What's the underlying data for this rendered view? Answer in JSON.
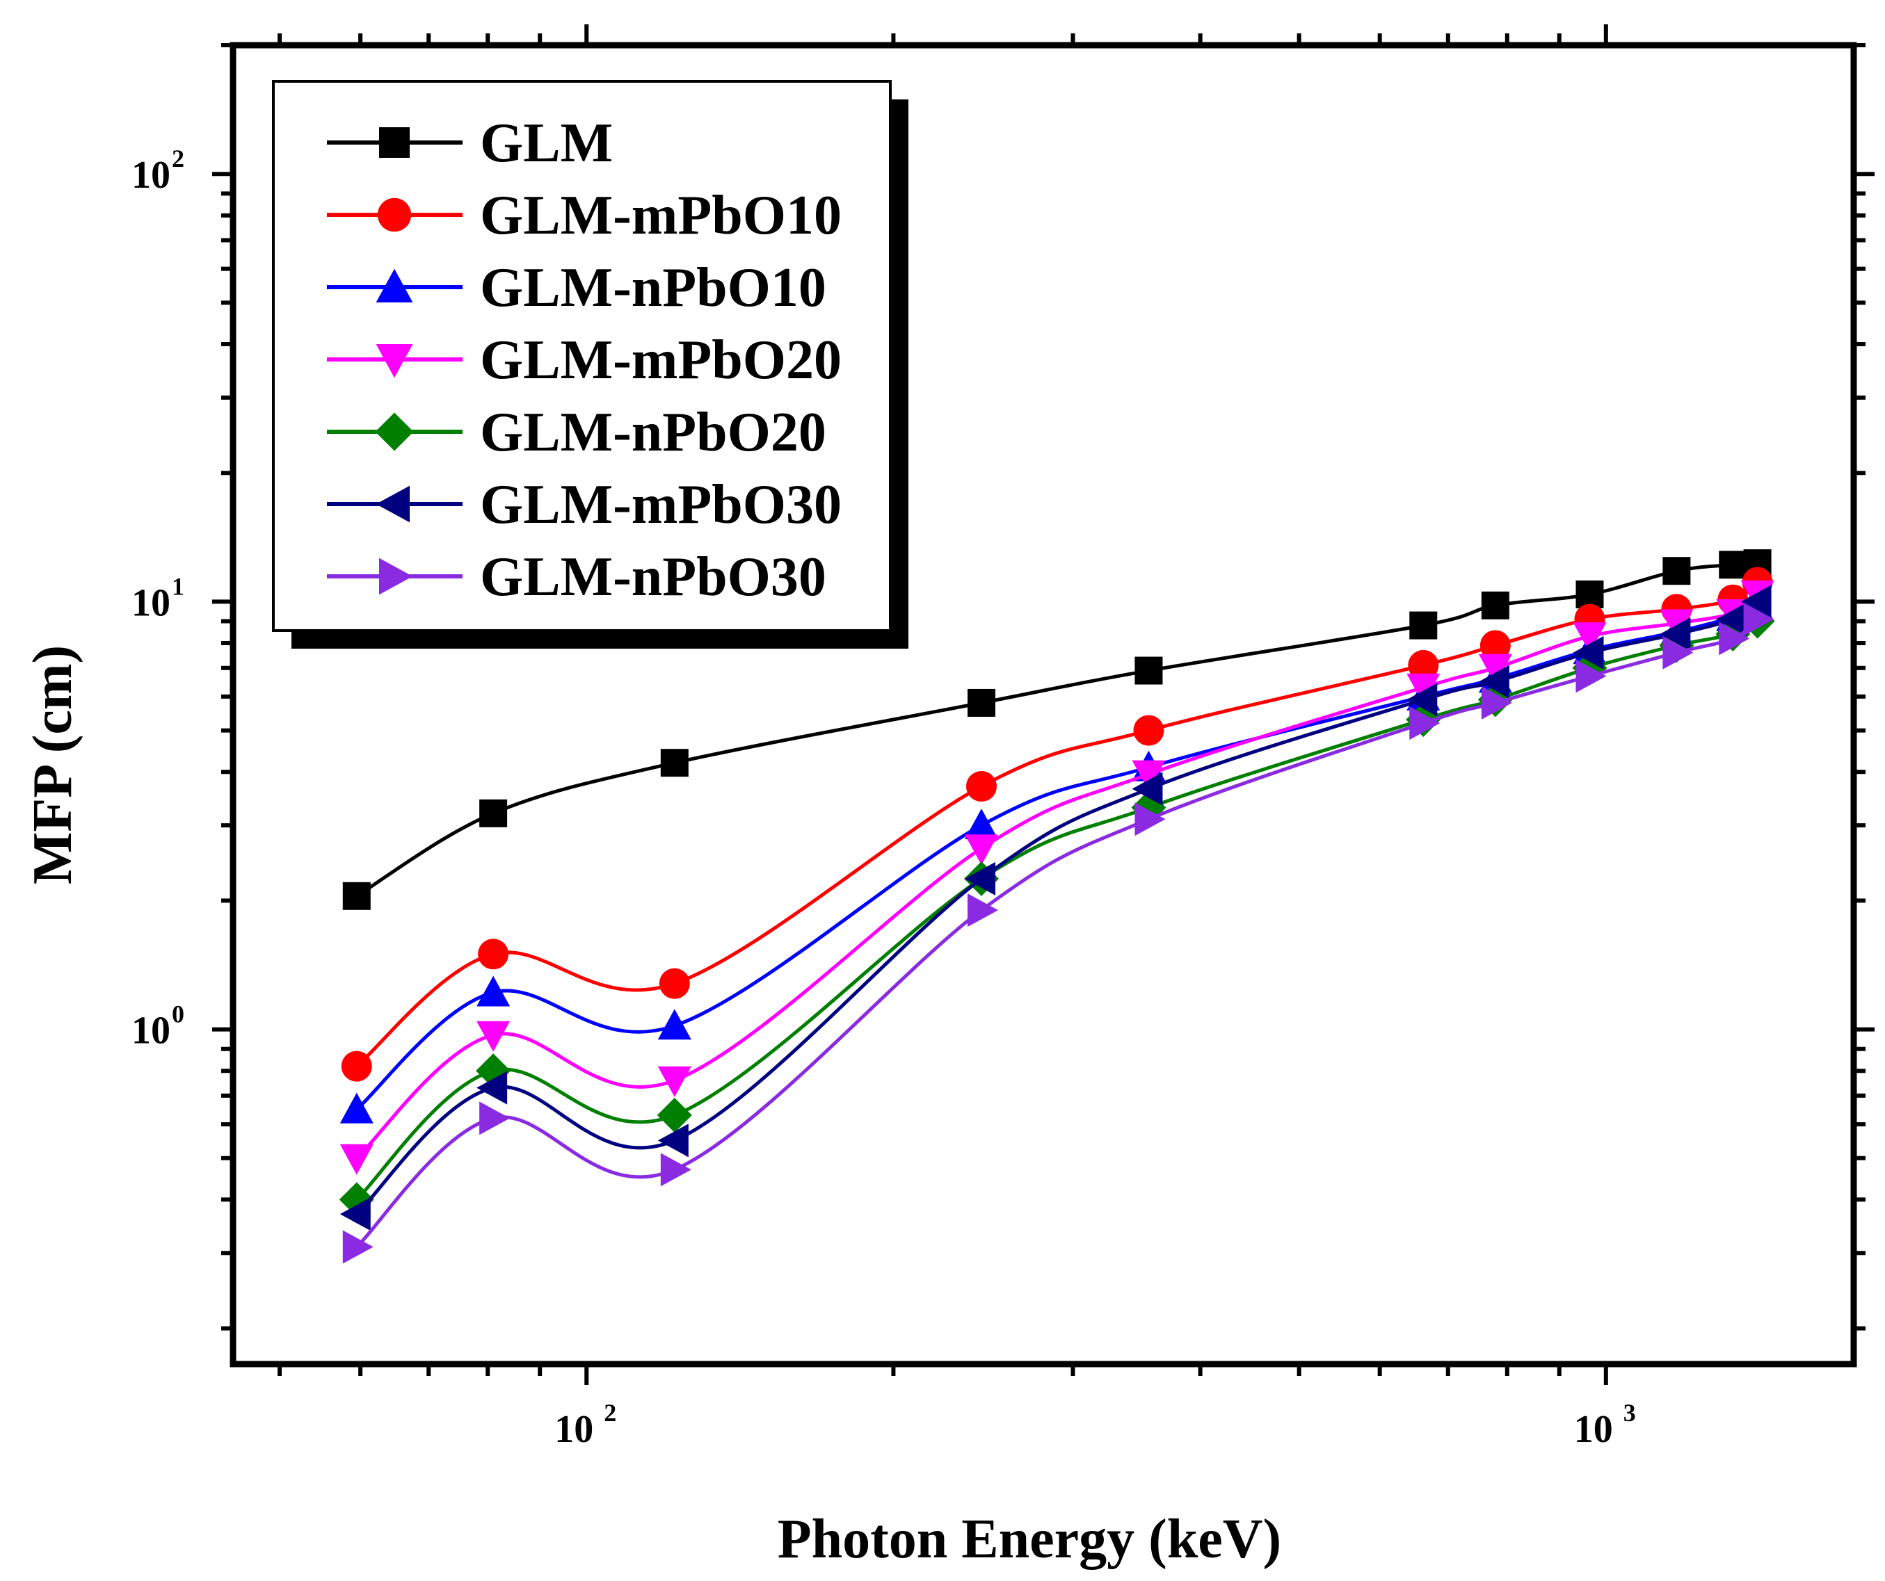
{
  "chart_data": {
    "type": "line",
    "title": "",
    "xlabel": "Photon Energy (keV)",
    "ylabel": "MFP (cm)",
    "xscale": "log",
    "yscale": "log",
    "xlim": [
      45,
      1750
    ],
    "ylim": [
      0.165,
      200
    ],
    "x_ticks": [
      {
        "base": "10",
        "exp": "2",
        "value": 100
      },
      {
        "base": "10",
        "exp": "3",
        "value": 1000
      }
    ],
    "y_ticks": [
      {
        "base": "10",
        "exp": "0",
        "value": 1
      },
      {
        "base": "10",
        "exp": "1",
        "value": 10
      },
      {
        "base": "10",
        "exp": "2",
        "value": 100
      }
    ],
    "legend_position": "top-left",
    "x": [
      59.5,
      81,
      122,
      244,
      356,
      662,
      779,
      964,
      1173,
      1332,
      1408
    ],
    "series": [
      {
        "name": "GLM",
        "color": "#000000",
        "marker": "square",
        "values": [
          2.05,
          3.2,
          4.2,
          5.8,
          6.9,
          8.8,
          9.8,
          10.4,
          11.8,
          12.2,
          12.3
        ]
      },
      {
        "name": "GLM-mPbO10",
        "color": "#ff0000",
        "marker": "circle",
        "values": [
          0.82,
          1.5,
          1.28,
          3.7,
          5.0,
          7.1,
          7.9,
          9.1,
          9.6,
          10.1,
          11.1
        ]
      },
      {
        "name": "GLM-nPbO10",
        "color": "#0000ff",
        "marker": "triangle-up",
        "values": [
          0.65,
          1.22,
          1.02,
          3.0,
          4.1,
          6.0,
          6.6,
          7.7,
          8.5,
          9.2,
          9.7
        ]
      },
      {
        "name": "GLM-mPbO20",
        "color": "#ff00ff",
        "marker": "triangle-down",
        "values": [
          0.5,
          0.97,
          0.76,
          2.65,
          3.95,
          6.3,
          7.0,
          8.3,
          8.9,
          9.4,
          10.4
        ]
      },
      {
        "name": "GLM-nPbO20",
        "color": "#007f00",
        "marker": "diamond",
        "values": [
          0.4,
          0.8,
          0.63,
          2.25,
          3.3,
          5.3,
          5.9,
          7.0,
          7.9,
          8.4,
          9.0
        ]
      },
      {
        "name": "GLM-mPbO30",
        "color": "#000080",
        "marker": "triangle-left",
        "values": [
          0.37,
          0.73,
          0.55,
          2.25,
          3.65,
          5.9,
          6.5,
          7.6,
          8.4,
          9.1,
          10.0
        ]
      },
      {
        "name": "GLM-nPbO30",
        "color": "#8a2be2",
        "marker": "triangle-right",
        "values": [
          0.31,
          0.62,
          0.47,
          1.9,
          3.1,
          5.2,
          5.8,
          6.7,
          7.6,
          8.2,
          9.1
        ]
      }
    ]
  }
}
